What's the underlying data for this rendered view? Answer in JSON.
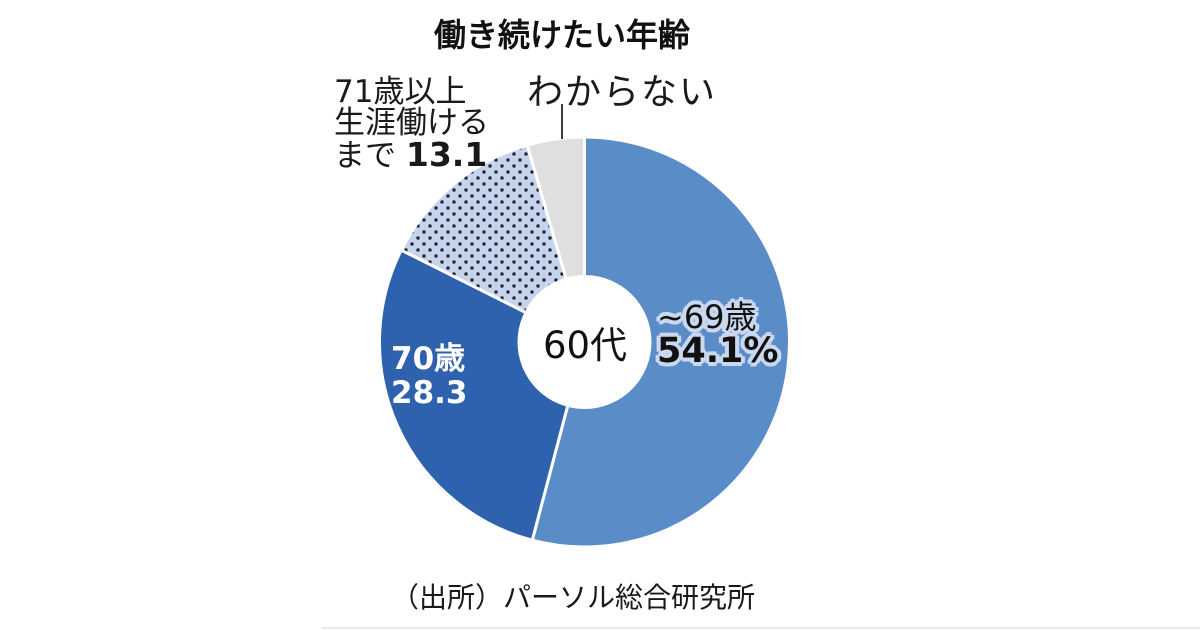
{
  "title": "働き続けたい年齢",
  "center_label": "60代",
  "source": "（出所）パーソル総合研究所",
  "labels": {
    "under69": {
      "name": "~69歳",
      "value": "54.1%"
    },
    "age70": {
      "name": "70歳",
      "value": "28.3"
    },
    "age71plus": {
      "line1": "71歳以上",
      "line2": "生涯働ける",
      "line3": "まで",
      "value": "13.1"
    },
    "unknown": {
      "name": "わからない"
    }
  },
  "colors": {
    "slice_under69": "#5a8cc8",
    "slice_70": "#2f62ae",
    "slice_71plus_bg": "#c6d5ed",
    "slice_71plus_dot": "#161a23",
    "slice_unknown": "#dfdfdf",
    "label_halo": "#c9d8ef",
    "text": "#111111",
    "text_on_dark": "#ffffff"
  },
  "chart_data": {
    "type": "pie",
    "donut": true,
    "title": "働き続けたい年齢",
    "center_label": "60代",
    "unit": "%",
    "start_angle_deg": 0,
    "direction": "clockwise",
    "slices": [
      {
        "id": "under-69",
        "label": "~69歳",
        "value": 54.1,
        "value_label": "54.1%",
        "color": "#5a8cc8"
      },
      {
        "id": "70",
        "label": "70歳",
        "value": 28.3,
        "value_label": "28.3",
        "color": "#2f62ae"
      },
      {
        "id": "71-plus-lifetime",
        "label": "71歳以上生涯働けるまで",
        "value": 13.1,
        "value_label": "13.1",
        "color": "#c6d5ed",
        "pattern": "dots",
        "dot_color": "#161a23"
      },
      {
        "id": "unknown",
        "label": "わからない",
        "value": 4.5,
        "value_label": "",
        "estimated_from_remainder": true,
        "color": "#dfdfdf"
      }
    ],
    "source": "（出所）パーソル総合研究所"
  }
}
